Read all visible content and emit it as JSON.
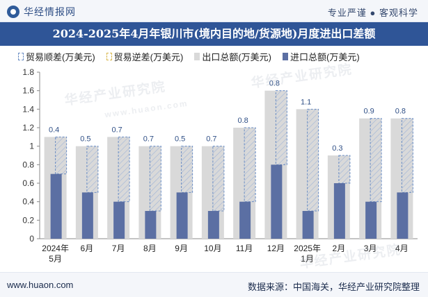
{
  "header": {
    "logo_text": "华经情报网",
    "slogan": "专业严谨 ● 客观科学"
  },
  "watermark": {
    "text": "华经产业研究院",
    "url": "www.huaon.com"
  },
  "footer": {
    "website": "www.huaon.com",
    "source": "数据来源：中国海关，华经产业研究院整理"
  },
  "colors": {
    "export": "#d9d9d9",
    "import": "#5b6fa3",
    "surplus_border": "#6a8dc4",
    "title_bar": "#2f5597"
  },
  "legend": {
    "surplus": "贸易顺差(万美元)",
    "deficit": "贸易逆差(万美元)",
    "export": "出口总额(万美元)",
    "import": "进口总额(万美元)"
  },
  "chart_data": {
    "type": "bar",
    "title": "2024-2025年4月年银川市(境内目的地/货源地)月度进出口差额",
    "categories": [
      "2024年5月",
      "6月",
      "7月",
      "8月",
      "9月",
      "10月",
      "11月",
      "12月",
      "2025年1月",
      "2月",
      "3月",
      "4月"
    ],
    "series": [
      {
        "name": "出口总额(万美元)",
        "values": [
          1.1,
          1.0,
          1.1,
          1.0,
          1.0,
          1.0,
          1.2,
          1.6,
          1.4,
          0.9,
          1.3,
          1.3
        ]
      },
      {
        "name": "进口总额(万美元)",
        "values": [
          0.7,
          0.5,
          0.4,
          0.3,
          0.5,
          0.3,
          0.4,
          0.8,
          0.3,
          0.6,
          0.4,
          0.5
        ]
      },
      {
        "name": "贸易顺差(万美元)",
        "values": [
          0.4,
          0.5,
          0.7,
          0.7,
          0.5,
          0.7,
          0.8,
          0.8,
          1.1,
          0.3,
          0.9,
          0.8
        ]
      },
      {
        "name": "贸易逆差(万美元)",
        "values": [
          0,
          0,
          0,
          0,
          0,
          0,
          0,
          0,
          0,
          0,
          0,
          0
        ]
      }
    ],
    "data_labels": [
      "0.4",
      "0.5",
      "0.7",
      "0.7",
      "0.5",
      "0.7",
      "0.8",
      "0.8",
      "1.1",
      "0.3",
      "0.9",
      "0.8"
    ],
    "ylim": [
      0,
      1.8
    ],
    "yticks": [
      "0",
      "0.2",
      "0.4",
      "0.6",
      "0.8",
      "1",
      "1.2",
      "1.4",
      "1.6",
      "1.8"
    ],
    "xlabel": "",
    "ylabel": "",
    "grid": false,
    "legend_position": "top"
  }
}
